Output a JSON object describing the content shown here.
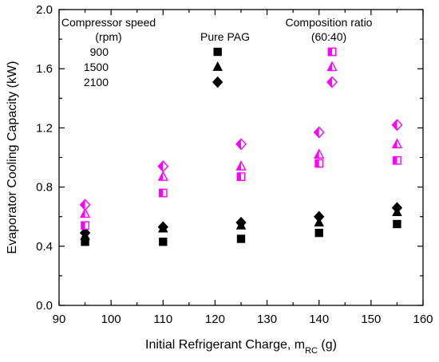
{
  "chart_data": {
    "type": "scatter",
    "title": "",
    "xlabel": "Initial Refrigerant Charge, m",
    "xlabel_sub": "RC",
    "xlabel_suffix": " (g)",
    "ylabel": "Evaporator Cooling Capacity (kW)",
    "xlim": [
      90,
      160
    ],
    "ylim": [
      0.0,
      2.0
    ],
    "x_ticks": [
      90,
      100,
      110,
      120,
      130,
      140,
      150,
      160
    ],
    "y_ticks": [
      0.0,
      0.4,
      0.8,
      1.2,
      1.6,
      2.0
    ],
    "y_tick_labels": [
      "0.0",
      "0.4",
      "0.8",
      "1.2",
      "1.6",
      "2.0"
    ],
    "grid": false,
    "legend": {
      "placement": "top",
      "speed_header_line1": "Compressor speed",
      "speed_header_line2": "(rpm)",
      "speeds": [
        "900",
        "1500",
        "2100"
      ],
      "group1_header": "Pure PAG",
      "group2_header_line1": "Composition ratio",
      "group2_header_line2": "(60:40)"
    },
    "colors": {
      "pure_pag": "#000000",
      "composition": "#ff00ff"
    },
    "series": [
      {
        "name": "900",
        "group": "Pure PAG",
        "marker": "square",
        "x": [
          95,
          110,
          125,
          140,
          155
        ],
        "y": [
          0.43,
          0.43,
          0.45,
          0.49,
          0.55
        ]
      },
      {
        "name": "1500",
        "group": "Pure PAG",
        "marker": "triangle",
        "x": [
          95,
          110,
          125,
          140,
          155
        ],
        "y": [
          0.47,
          0.52,
          0.54,
          0.56,
          0.63
        ]
      },
      {
        "name": "2100",
        "group": "Pure PAG",
        "marker": "diamond",
        "x": [
          95,
          110,
          125,
          140,
          155
        ],
        "y": [
          0.49,
          0.53,
          0.56,
          0.6,
          0.66
        ]
      },
      {
        "name": "900",
        "group": "Composition ratio (60:40)",
        "marker": "square-half",
        "x": [
          95,
          110,
          125,
          140,
          155
        ],
        "y": [
          0.54,
          0.76,
          0.87,
          0.96,
          0.98
        ]
      },
      {
        "name": "1500",
        "group": "Composition ratio (60:40)",
        "marker": "triangle-half",
        "x": [
          95,
          110,
          125,
          140,
          155
        ],
        "y": [
          0.62,
          0.87,
          0.94,
          1.02,
          1.09
        ]
      },
      {
        "name": "2100",
        "group": "Composition ratio (60:40)",
        "marker": "diamond-half",
        "x": [
          95,
          110,
          125,
          140,
          155
        ],
        "y": [
          0.68,
          0.94,
          1.09,
          1.17,
          1.22
        ]
      }
    ]
  }
}
